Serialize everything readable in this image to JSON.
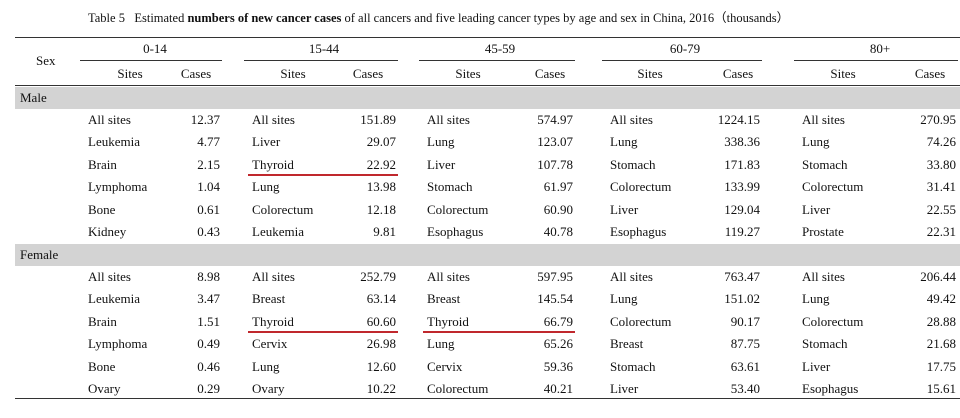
{
  "title": {
    "prefix": "Table 5",
    "before": "Estimated",
    "bold": "numbers of new cancer cases",
    "after": "of all cancers and five leading cancer types by age and sex in China, 2016（thousands）"
  },
  "header": {
    "sex": "Sex",
    "groups": [
      "0-14",
      "15-44",
      "45-59",
      "60-79",
      "80+"
    ],
    "sub": [
      "Sites",
      "Cases",
      "Sites",
      "Cases",
      "Sites",
      "Cases",
      "Sites",
      "Cases",
      "Sites",
      "Cases"
    ]
  },
  "sections": [
    {
      "label": "Male",
      "rows": [
        [
          "All sites",
          "12.37",
          "All sites",
          "151.89",
          "All sites",
          "574.97",
          "All sites",
          "1224.15",
          "All sites",
          "270.95"
        ],
        [
          "Leukemia",
          "4.77",
          "Liver",
          "29.07",
          "Lung",
          "123.07",
          "Lung",
          "338.36",
          "Lung",
          "74.26"
        ],
        [
          "Brain",
          "2.15",
          "Thyroid",
          "22.92",
          "Liver",
          "107.78",
          "Stomach",
          "171.83",
          "Stomach",
          "33.80"
        ],
        [
          "Lymphoma",
          "1.04",
          "Lung",
          "13.98",
          "Stomach",
          "61.97",
          "Colorectum",
          "133.99",
          "Colorectum",
          "31.41"
        ],
        [
          "Bone",
          "0.61",
          "Colorectum",
          "12.18",
          "Colorectum",
          "60.90",
          "Liver",
          "129.04",
          "Liver",
          "22.55"
        ],
        [
          "Kidney",
          "0.43",
          "Leukemia",
          "9.81",
          "Esophagus",
          "40.78",
          "Esophagus",
          "119.27",
          "Prostate",
          "22.31"
        ]
      ]
    },
    {
      "label": "Female",
      "rows": [
        [
          "All sites",
          "8.98",
          "All sites",
          "252.79",
          "All sites",
          "597.95",
          "All sites",
          "763.47",
          "All sites",
          "206.44"
        ],
        [
          "Leukemia",
          "3.47",
          "Breast",
          "63.14",
          "Breast",
          "145.54",
          "Lung",
          "151.02",
          "Lung",
          "49.42"
        ],
        [
          "Brain",
          "1.51",
          "Thyroid",
          "60.60",
          "Thyroid",
          "66.79",
          "Colorectum",
          "90.17",
          "Colorectum",
          "28.88"
        ],
        [
          "Lymphoma",
          "0.49",
          "Cervix",
          "26.98",
          "Lung",
          "65.26",
          "Breast",
          "87.75",
          "Stomach",
          "21.68"
        ],
        [
          "Bone",
          "0.46",
          "Lung",
          "12.60",
          "Cervix",
          "59.36",
          "Stomach",
          "63.61",
          "Liver",
          "17.75"
        ],
        [
          "Ovary",
          "0.29",
          "Ovary",
          "10.22",
          "Colorectum",
          "40.21",
          "Liver",
          "53.40",
          "Esophagus",
          "15.61"
        ]
      ]
    }
  ]
}
